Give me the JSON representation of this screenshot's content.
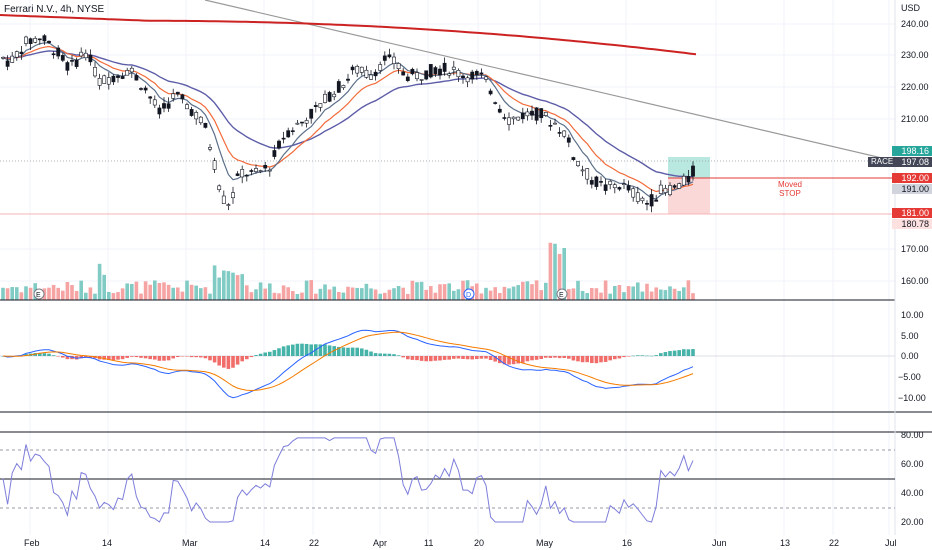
{
  "header": {
    "title": "Ferrari N.V., 4h, NYSE",
    "currency": "USD"
  },
  "price_axis": {
    "ticks": [
      "240.00",
      "230.00",
      "220.00",
      "210.00",
      "170.00",
      "160.00"
    ]
  },
  "badges": {
    "tp": "198.16",
    "last": "197.08",
    "stop": "192.00",
    "entry": "191.00",
    "old_stop": "181.00",
    "low": "180.78",
    "symbol": "RACE"
  },
  "annotation": {
    "line1": "Moved",
    "line2": "STOP"
  },
  "macd_axis": {
    "ticks": [
      "10.00",
      "5.00",
      "0.00",
      "−5.00",
      "−10.00"
    ]
  },
  "rsi_axis": {
    "ticks": [
      "80.00",
      "60.00",
      "40.00",
      "20.00"
    ]
  },
  "time_axis": {
    "ticks": [
      "Feb",
      "14",
      "Mar",
      "14",
      "22",
      "Apr",
      "11",
      "20",
      "May",
      "16",
      "Jun",
      "13",
      "22",
      "Jul"
    ]
  },
  "earnings_markers": [
    "E",
    "D",
    "E"
  ],
  "colors": {
    "up": "#26a69a",
    "down": "#131722",
    "ema_fast": "#5b6f8a",
    "ema_mid": "#f26b3a",
    "ema_slow": "#5d5da8",
    "ma_long": "#cc2222",
    "trend": "#888888",
    "stop": "#e53935",
    "vol_up": "#80cbc4",
    "vol_down": "#f5a3a3",
    "rsi": "#7e7edb"
  }
}
